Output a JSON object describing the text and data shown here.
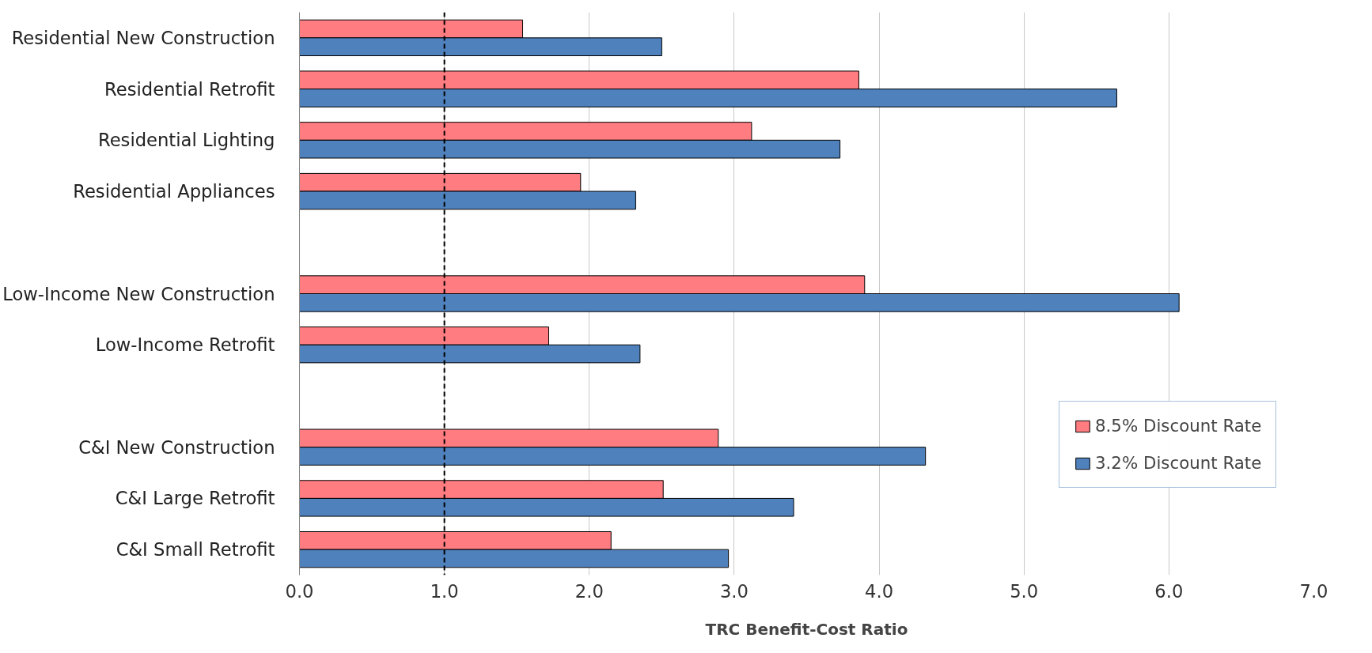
{
  "chart_data": {
    "type": "bar",
    "orientation": "horizontal",
    "categories": [
      "Residential New Construction",
      "Residential Retrofit",
      "Residential Lighting",
      "Residential Appliances",
      null,
      "Low-Income New Construction",
      "Low-Income Retrofit",
      null,
      "C&I New Construction",
      "C&I Large Retrofit",
      "C&I Small Retrofit"
    ],
    "series": [
      {
        "name": "8.5% Discount Rate",
        "color": "#ff7c80",
        "values": [
          1.54,
          3.86,
          3.12,
          1.94,
          null,
          3.9,
          1.72,
          null,
          2.89,
          2.51,
          2.15
        ]
      },
      {
        "name": "3.2% Discount Rate",
        "color": "#4f81bd",
        "values": [
          2.5,
          5.64,
          3.73,
          2.32,
          null,
          6.07,
          2.35,
          null,
          4.32,
          3.41,
          2.96
        ]
      }
    ],
    "xlabel": "TRC Benefit-Cost Ratio",
    "xlim": [
      0,
      7
    ],
    "xticks": [
      {
        "value": 0,
        "label": "0.0"
      },
      {
        "value": 1,
        "label": "1.0"
      },
      {
        "value": 2,
        "label": "2.0"
      },
      {
        "value": 3,
        "label": "3.0"
      },
      {
        "value": 4,
        "label": "4.0"
      },
      {
        "value": 5,
        "label": "5.0"
      },
      {
        "value": 6,
        "label": "6.0"
      },
      {
        "value": 7,
        "label": "7.0"
      }
    ],
    "ref_lines": [
      {
        "axis": "x",
        "value": 1,
        "color": "#000000",
        "line_style": "dashed"
      }
    ],
    "grid": "x",
    "legend": "right"
  }
}
